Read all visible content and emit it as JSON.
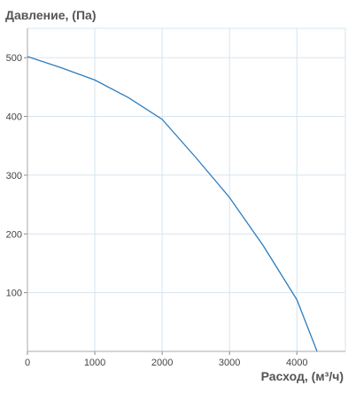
{
  "chart_data": {
    "type": "line",
    "title": "Давление, (Па)",
    "x_label": "Расход, (м³/ч)",
    "x": [
      0,
      500,
      1000,
      1500,
      2000,
      2500,
      3000,
      3500,
      4000,
      4300
    ],
    "series": [
      {
        "color": "#2f7dbd",
        "values": [
          502,
          483,
          462,
          432,
          395,
          330,
          262,
          180,
          88,
          0
        ]
      }
    ],
    "xlim": [
      0,
      4720
    ],
    "xticks": [
      0,
      1000,
      2000,
      3000,
      4000
    ],
    "ylim": [
      0,
      550
    ],
    "yticks": [
      100,
      200,
      300,
      400,
      500
    ],
    "grid": true
  }
}
